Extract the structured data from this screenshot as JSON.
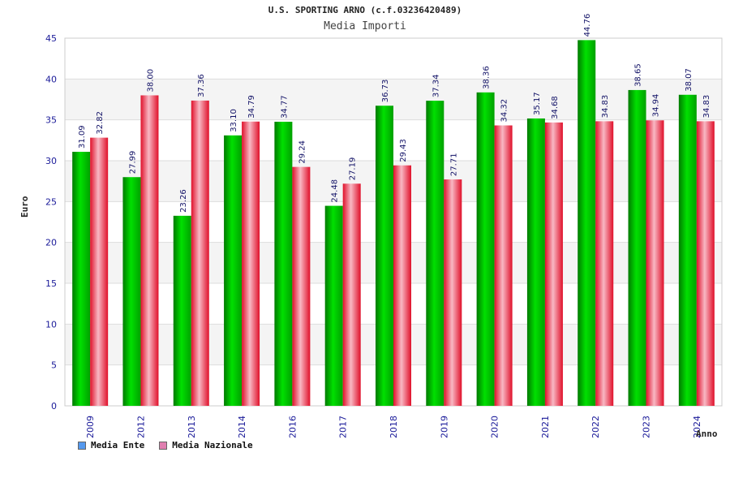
{
  "chart_data": {
    "type": "bar",
    "title": "U.S. SPORTING ARNO (c.f.03236420489)",
    "subtitle": "Media Importi",
    "xlabel": "Anno",
    "ylabel": "Euro",
    "ylim": [
      0,
      45
    ],
    "yticks": [
      0,
      5,
      10,
      15,
      20,
      25,
      30,
      35,
      40,
      45
    ],
    "grid": true,
    "legend_position": "bottom-left",
    "categories": [
      "2009",
      "2012",
      "2013",
      "2014",
      "2016",
      "2017",
      "2018",
      "2019",
      "2020",
      "2021",
      "2022",
      "2023",
      "2024"
    ],
    "series": [
      {
        "name": "Media Ente",
        "color": "#00b400",
        "swatch": "#5599ee",
        "values": [
          31.09,
          27.99,
          23.26,
          33.1,
          34.77,
          24.48,
          36.73,
          37.34,
          38.36,
          35.17,
          44.76,
          38.65,
          38.07
        ],
        "labels": [
          "31.09",
          "27.99",
          "23.26",
          "33.10",
          "34.77",
          "24.48",
          "36.73",
          "37.34",
          "38.36",
          "35.17",
          "44.76",
          "38.65",
          "38.07"
        ]
      },
      {
        "name": "Media Nazionale",
        "color": "#ee1c2c",
        "swatch": "#e07fb0",
        "values": [
          32.82,
          38.0,
          37.36,
          34.79,
          29.24,
          27.19,
          29.43,
          27.71,
          34.32,
          34.68,
          34.83,
          34.94,
          34.83
        ],
        "labels": [
          "32.82",
          "38.00",
          "37.36",
          "34.79",
          "29.24",
          "27.19",
          "29.43",
          "27.71",
          "34.32",
          "34.68",
          "34.83",
          "34.94",
          "34.83"
        ]
      }
    ]
  }
}
